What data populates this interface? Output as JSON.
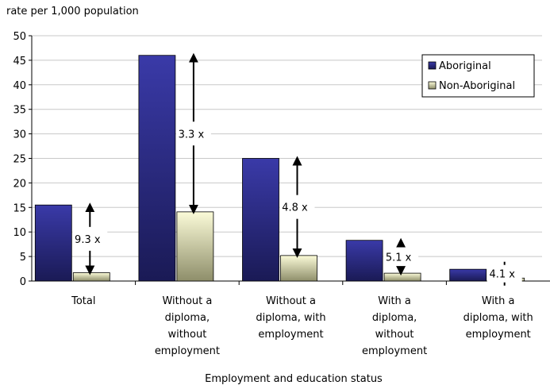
{
  "chart_data": {
    "type": "bar",
    "ylabel": "rate per 1,000 population",
    "xlabel": "Employment and education status",
    "ylim": [
      0,
      50
    ],
    "yticks": [
      0,
      5,
      10,
      15,
      20,
      25,
      30,
      35,
      40,
      45,
      50
    ],
    "grid": true,
    "legend_position": "top-right",
    "categories": [
      [
        "Total"
      ],
      [
        "Without a",
        "diploma,",
        "without",
        "employment"
      ],
      [
        "Without a",
        "diploma, with",
        "employment"
      ],
      [
        "With a",
        "diploma,",
        "without",
        "employment"
      ],
      [
        "With a",
        "diploma, with",
        "employment"
      ]
    ],
    "series": [
      {
        "name": "Aboriginal",
        "values": [
          15.5,
          46.0,
          25.0,
          8.3,
          2.4
        ],
        "color": "#2b2b8c"
      },
      {
        "name": "Non-Aboriginal",
        "values": [
          1.7,
          14.1,
          5.2,
          1.6,
          0.6
        ],
        "color": "#eeeebb"
      }
    ],
    "annotations": [
      "9.3 x",
      "3.3 x",
      "4.8 x",
      "5.1 x",
      "4.1 x"
    ]
  }
}
